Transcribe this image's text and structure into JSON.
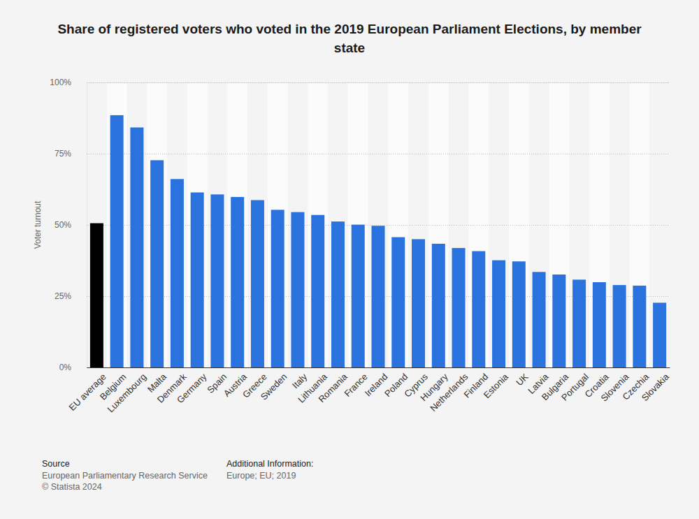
{
  "chart_data": {
    "type": "bar",
    "title": "Share of registered voters who voted in the 2019 European Parliament Elections, by member state",
    "y_label": "Voter turnout",
    "categories": [
      "EU average",
      "Belgium",
      "Luxembourg",
      "Malta",
      "Denmark",
      "Germany",
      "Spain",
      "Austria",
      "Greece",
      "Sweden",
      "Italy",
      "Lithuania",
      "Romania",
      "France",
      "Ireland",
      "Poland",
      "Cyprus",
      "Hungary",
      "Netherlands",
      "Finland",
      "Estonia",
      "UK",
      "Latvia",
      "Bulgaria",
      "Portugal",
      "Croatia",
      "Slovenia",
      "Czechia",
      "Slovakia"
    ],
    "values": [
      50.6,
      88.5,
      84.2,
      72.7,
      66.1,
      61.4,
      60.7,
      59.8,
      58.7,
      55.3,
      54.5,
      53.5,
      51.2,
      50.1,
      49.7,
      45.7,
      45.0,
      43.4,
      41.9,
      40.8,
      37.6,
      37.2,
      33.5,
      32.6,
      30.8,
      29.9,
      28.9,
      28.7,
      22.7
    ],
    "colors": [
      "#000000",
      "#2a72de",
      "#2a72de",
      "#2a72de",
      "#2a72de",
      "#2a72de",
      "#2a72de",
      "#2a72de",
      "#2a72de",
      "#2a72de",
      "#2a72de",
      "#2a72de",
      "#2a72de",
      "#2a72de",
      "#2a72de",
      "#2a72de",
      "#2a72de",
      "#2a72de",
      "#2a72de",
      "#2a72de",
      "#2a72de",
      "#2a72de",
      "#2a72de",
      "#2a72de",
      "#2a72de",
      "#2a72de",
      "#2a72de",
      "#2a72de",
      "#2a72de"
    ],
    "ylim": [
      0,
      100
    ],
    "yticks": [
      {
        "value": 0,
        "label": "0%"
      },
      {
        "value": 25,
        "label": "25%"
      },
      {
        "value": 50,
        "label": "50%"
      },
      {
        "value": 75,
        "label": "75%"
      },
      {
        "value": 100,
        "label": "100%"
      }
    ],
    "grid": true,
    "annotations": [
      "Source",
      "European Parliamentary Research Service",
      "© Statista 2024",
      "Additional Information:",
      "Europe; EU; 2019"
    ]
  }
}
